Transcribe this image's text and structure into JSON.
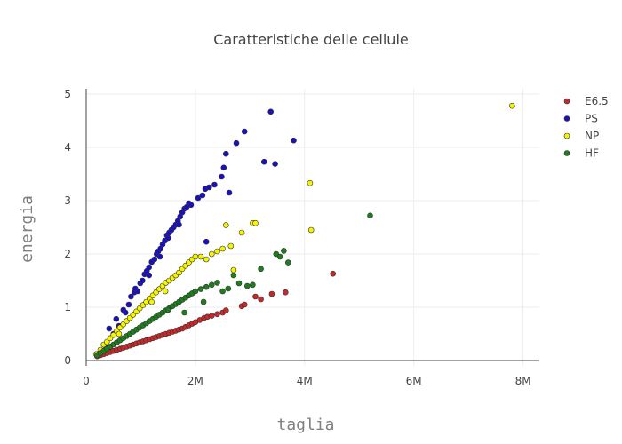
{
  "chart_data": {
    "type": "scatter",
    "title": "Caratteristiche delle cellule",
    "xlabel": "taglia",
    "ylabel": "energia",
    "xlim": [
      0,
      8300000
    ],
    "ylim": [
      -0.1,
      5.1
    ],
    "x_ticks": [
      {
        "value": 0,
        "label": "0"
      },
      {
        "value": 2000000,
        "label": "2M"
      },
      {
        "value": 4000000,
        "label": "4M"
      },
      {
        "value": 6000000,
        "label": "6M"
      },
      {
        "value": 8000000,
        "label": "8M"
      }
    ],
    "y_ticks": [
      {
        "value": 0,
        "label": "0"
      },
      {
        "value": 1,
        "label": "1"
      },
      {
        "value": 2,
        "label": "2"
      },
      {
        "value": 3,
        "label": "3"
      },
      {
        "value": 4,
        "label": "4"
      },
      {
        "value": 5,
        "label": "5"
      }
    ],
    "grid": true,
    "legend_position": "top-right",
    "series": [
      {
        "name": "E6.5",
        "color": "#c8282a",
        "points": [
          [
            200000,
            0.08
          ],
          [
            260000,
            0.1
          ],
          [
            320000,
            0.12
          ],
          [
            380000,
            0.14
          ],
          [
            440000,
            0.16
          ],
          [
            500000,
            0.18
          ],
          [
            560000,
            0.2
          ],
          [
            620000,
            0.22
          ],
          [
            680000,
            0.24
          ],
          [
            740000,
            0.26
          ],
          [
            800000,
            0.28
          ],
          [
            860000,
            0.3
          ],
          [
            920000,
            0.32
          ],
          [
            980000,
            0.34
          ],
          [
            1040000,
            0.36
          ],
          [
            1100000,
            0.38
          ],
          [
            1160000,
            0.4
          ],
          [
            1220000,
            0.42
          ],
          [
            1280000,
            0.44
          ],
          [
            1340000,
            0.46
          ],
          [
            1400000,
            0.48
          ],
          [
            1460000,
            0.5
          ],
          [
            1520000,
            0.52
          ],
          [
            1580000,
            0.54
          ],
          [
            1640000,
            0.56
          ],
          [
            1700000,
            0.58
          ],
          [
            1760000,
            0.6
          ],
          [
            1820000,
            0.63
          ],
          [
            1880000,
            0.66
          ],
          [
            1940000,
            0.69
          ],
          [
            2000000,
            0.72
          ],
          [
            2080000,
            0.76
          ],
          [
            2160000,
            0.8
          ],
          [
            2220000,
            0.82
          ],
          [
            2300000,
            0.84
          ],
          [
            2400000,
            0.87
          ],
          [
            2500000,
            0.9
          ],
          [
            2560000,
            0.94
          ],
          [
            2850000,
            1.02
          ],
          [
            2900000,
            1.05
          ],
          [
            3100000,
            1.2
          ],
          [
            3200000,
            1.15
          ],
          [
            3400000,
            1.25
          ],
          [
            3650000,
            1.28
          ],
          [
            4520000,
            1.63
          ]
        ]
      },
      {
        "name": "PS",
        "color": "#1a10c0",
        "points": [
          [
            250000,
            0.15
          ],
          [
            350000,
            0.28
          ],
          [
            420000,
            0.6
          ],
          [
            500000,
            0.5
          ],
          [
            550000,
            0.78
          ],
          [
            600000,
            0.65
          ],
          [
            680000,
            0.95
          ],
          [
            720000,
            0.9
          ],
          [
            780000,
            1.05
          ],
          [
            820000,
            1.2
          ],
          [
            880000,
            1.28
          ],
          [
            940000,
            1.3
          ],
          [
            990000,
            1.45
          ],
          [
            1030000,
            1.5
          ],
          [
            1070000,
            1.62
          ],
          [
            1110000,
            1.68
          ],
          [
            1150000,
            1.75
          ],
          [
            1200000,
            1.85
          ],
          [
            1250000,
            1.9
          ],
          [
            1290000,
            2.0
          ],
          [
            1320000,
            2.05
          ],
          [
            1360000,
            2.1
          ],
          [
            1400000,
            2.18
          ],
          [
            1440000,
            2.25
          ],
          [
            1480000,
            2.35
          ],
          [
            1520000,
            2.4
          ],
          [
            1560000,
            2.45
          ],
          [
            1600000,
            2.5
          ],
          [
            1640000,
            2.55
          ],
          [
            1680000,
            2.62
          ],
          [
            1720000,
            2.7
          ],
          [
            1760000,
            2.78
          ],
          [
            1800000,
            2.85
          ],
          [
            1840000,
            2.88
          ],
          [
            1880000,
            2.95
          ],
          [
            1920000,
            2.92
          ],
          [
            2050000,
            3.05
          ],
          [
            2130000,
            3.1
          ],
          [
            2180000,
            3.22
          ],
          [
            2250000,
            3.25
          ],
          [
            2350000,
            3.3
          ],
          [
            2200000,
            2.23
          ],
          [
            2480000,
            3.45
          ],
          [
            2520000,
            3.62
          ],
          [
            2560000,
            3.88
          ],
          [
            2620000,
            3.15
          ],
          [
            2750000,
            4.08
          ],
          [
            2900000,
            4.3
          ],
          [
            3380000,
            4.67
          ],
          [
            3260000,
            3.73
          ],
          [
            3460000,
            3.69
          ],
          [
            3800000,
            4.13
          ],
          [
            1700000,
            2.55
          ],
          [
            1500000,
            2.3
          ],
          [
            1350000,
            1.95
          ],
          [
            1150000,
            1.6
          ],
          [
            900000,
            1.35
          ]
        ]
      },
      {
        "name": "NP",
        "color": "#f5f500",
        "points": [
          [
            180000,
            0.12
          ],
          [
            260000,
            0.2
          ],
          [
            320000,
            0.3
          ],
          [
            380000,
            0.35
          ],
          [
            440000,
            0.42
          ],
          [
            500000,
            0.48
          ],
          [
            560000,
            0.55
          ],
          [
            620000,
            0.62
          ],
          [
            680000,
            0.68
          ],
          [
            740000,
            0.74
          ],
          [
            800000,
            0.8
          ],
          [
            860000,
            0.86
          ],
          [
            920000,
            0.92
          ],
          [
            980000,
            0.98
          ],
          [
            1040000,
            1.04
          ],
          [
            1100000,
            1.1
          ],
          [
            1160000,
            1.16
          ],
          [
            1220000,
            1.22
          ],
          [
            1280000,
            1.28
          ],
          [
            1340000,
            1.34
          ],
          [
            1400000,
            1.4
          ],
          [
            1460000,
            1.46
          ],
          [
            1520000,
            1.5
          ],
          [
            1580000,
            1.55
          ],
          [
            1640000,
            1.6
          ],
          [
            1700000,
            1.65
          ],
          [
            1760000,
            1.72
          ],
          [
            1820000,
            1.78
          ],
          [
            1880000,
            1.84
          ],
          [
            1940000,
            1.9
          ],
          [
            2000000,
            1.95
          ],
          [
            2100000,
            1.95
          ],
          [
            2200000,
            1.9
          ],
          [
            2300000,
            2.0
          ],
          [
            2400000,
            2.05
          ],
          [
            2500000,
            2.1
          ],
          [
            2560000,
            2.54
          ],
          [
            2650000,
            2.15
          ],
          [
            2700000,
            1.7
          ],
          [
            2850000,
            2.4
          ],
          [
            3050000,
            2.58
          ],
          [
            3100000,
            2.58
          ],
          [
            4100000,
            3.33
          ],
          [
            4120000,
            2.45
          ],
          [
            7800000,
            4.78
          ],
          [
            1450000,
            1.3
          ],
          [
            1200000,
            1.1
          ],
          [
            600000,
            0.5
          ]
        ]
      },
      {
        "name": "HF",
        "color": "#1e7e1e",
        "points": [
          [
            200000,
            0.1
          ],
          [
            260000,
            0.14
          ],
          [
            320000,
            0.18
          ],
          [
            380000,
            0.22
          ],
          [
            440000,
            0.26
          ],
          [
            500000,
            0.3
          ],
          [
            560000,
            0.34
          ],
          [
            620000,
            0.38
          ],
          [
            680000,
            0.42
          ],
          [
            740000,
            0.46
          ],
          [
            800000,
            0.5
          ],
          [
            860000,
            0.54
          ],
          [
            920000,
            0.58
          ],
          [
            980000,
            0.62
          ],
          [
            1040000,
            0.66
          ],
          [
            1100000,
            0.7
          ],
          [
            1160000,
            0.74
          ],
          [
            1220000,
            0.78
          ],
          [
            1280000,
            0.82
          ],
          [
            1340000,
            0.86
          ],
          [
            1400000,
            0.9
          ],
          [
            1460000,
            0.94
          ],
          [
            1520000,
            0.98
          ],
          [
            1580000,
            1.02
          ],
          [
            1640000,
            1.06
          ],
          [
            1700000,
            1.1
          ],
          [
            1760000,
            1.14
          ],
          [
            1820000,
            1.18
          ],
          [
            1880000,
            1.22
          ],
          [
            1940000,
            1.26
          ],
          [
            2000000,
            1.3
          ],
          [
            2100000,
            1.34
          ],
          [
            2200000,
            1.38
          ],
          [
            2300000,
            1.42
          ],
          [
            2400000,
            1.46
          ],
          [
            2500000,
            1.3
          ],
          [
            2600000,
            1.35
          ],
          [
            2700000,
            1.6
          ],
          [
            2800000,
            1.45
          ],
          [
            2950000,
            1.4
          ],
          [
            3050000,
            1.42
          ],
          [
            3200000,
            1.72
          ],
          [
            3480000,
            2.0
          ],
          [
            3550000,
            1.95
          ],
          [
            3620000,
            2.06
          ],
          [
            3700000,
            1.84
          ],
          [
            5200000,
            2.72
          ],
          [
            1800000,
            0.9
          ],
          [
            1500000,
            0.95
          ],
          [
            2150000,
            1.1
          ]
        ]
      }
    ]
  }
}
